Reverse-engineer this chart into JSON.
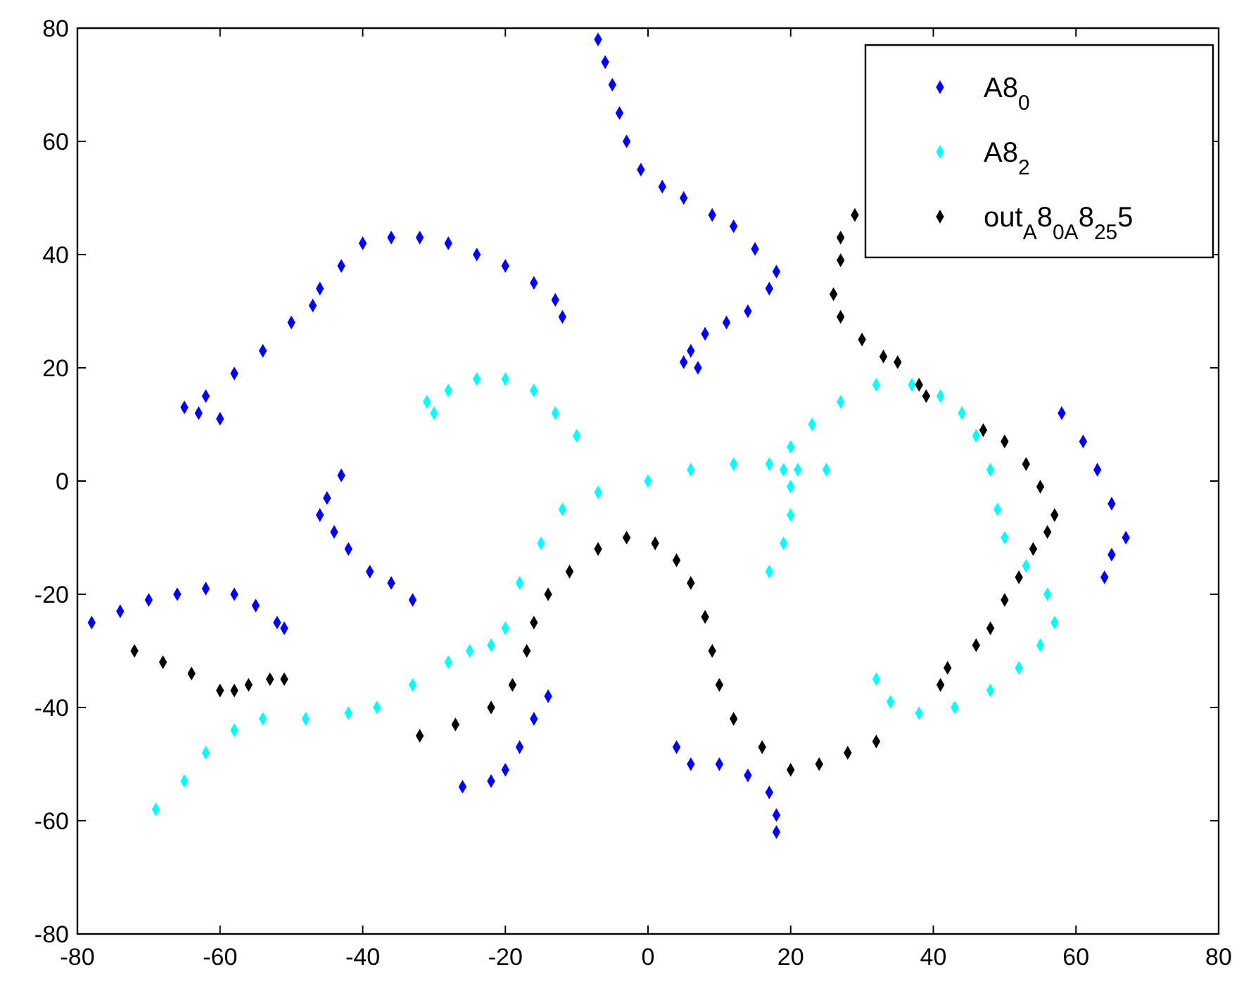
{
  "chart_data": {
    "type": "scatter",
    "marker": "diamond",
    "legend": "top right",
    "grid": false,
    "xlim": [
      -80,
      80
    ],
    "xticks": [
      -80,
      -60,
      -40,
      -20,
      0,
      20,
      40,
      60,
      80
    ],
    "ylim": [
      -80,
      80
    ],
    "yticks": [
      -80,
      -60,
      -40,
      -20,
      0,
      20,
      40,
      60,
      80
    ],
    "series": [
      {
        "name": "A8$_{0}$",
        "color": "#0000ff",
        "x": [
          -60,
          -63,
          -65,
          -62,
          -58,
          -54,
          -50,
          -47,
          -46,
          -43,
          -40,
          -36,
          -32,
          -28,
          -24,
          -20,
          -16,
          -13,
          -12,
          -7,
          -6,
          -5,
          -4,
          -3,
          -1,
          2,
          5,
          9,
          12,
          15,
          18,
          17,
          14,
          11,
          8,
          6,
          5,
          7,
          -43,
          -45,
          -46,
          -44,
          -42,
          -39,
          -36,
          -33,
          -78,
          -74,
          -70,
          -66,
          -62,
          -58,
          -55,
          -52,
          -51,
          -26,
          -22,
          -20,
          -18,
          -16,
          -14,
          4,
          6,
          10,
          14,
          17,
          18,
          18,
          58,
          61,
          63,
          65,
          67,
          65,
          64
        ],
        "values": [
          11,
          12,
          13,
          15,
          19,
          23,
          28,
          31,
          34,
          38,
          42,
          43,
          43,
          42,
          40,
          38,
          35,
          32,
          29,
          78,
          74,
          70,
          65,
          60,
          55,
          52,
          50,
          47,
          45,
          41,
          37,
          34,
          30,
          28,
          26,
          23,
          21,
          20,
          1,
          -3,
          -6,
          -9,
          -12,
          -16,
          -18,
          -21,
          -25,
          -23,
          -21,
          -20,
          -19,
          -20,
          -22,
          -25,
          -26,
          -54,
          -53,
          -51,
          -47,
          -42,
          -38,
          -47,
          -50,
          -50,
          -52,
          -55,
          -59,
          -62,
          12,
          7,
          2,
          -4,
          -10,
          -13,
          -17
        ]
      },
      {
        "name": "A8$_{2}$",
        "color": "#00ffff",
        "x": [
          -30,
          -31,
          -28,
          -24,
          -20,
          -16,
          -13,
          -10,
          -69,
          -65,
          -62,
          -58,
          -54,
          -48,
          -42,
          -38,
          -33,
          -28,
          -25,
          -22,
          -20,
          -18,
          -15,
          -12,
          -7,
          0,
          6,
          12,
          17,
          21,
          25,
          17,
          19,
          20,
          20,
          19,
          20,
          23,
          27,
          32,
          37,
          41,
          44,
          46,
          48,
          49,
          50,
          53,
          56,
          57,
          55,
          52,
          48,
          43,
          38,
          34,
          32
        ],
        "values": [
          12,
          14,
          16,
          18,
          18,
          16,
          12,
          8,
          -58,
          -53,
          -48,
          -44,
          -42,
          -42,
          -41,
          -40,
          -36,
          -32,
          -30,
          -29,
          -26,
          -18,
          -11,
          -5,
          -2,
          0,
          2,
          3,
          3,
          2,
          2,
          -16,
          -11,
          -6,
          -1,
          2,
          6,
          10,
          14,
          17,
          17,
          15,
          12,
          8,
          2,
          -5,
          -10,
          -15,
          -20,
          -25,
          -29,
          -33,
          -37,
          -40,
          -41,
          -39,
          -35
        ]
      },
      {
        "name": "out$_{A}$8$_{0A}$8$_{25}$5",
        "color": "#000000",
        "x": [
          -72,
          -68,
          -64,
          -60,
          -58,
          -56,
          -53,
          -51,
          -32,
          -27,
          -22,
          -19,
          -17,
          -16,
          -14,
          -11,
          -7,
          -3,
          1,
          4,
          6,
          8,
          9,
          10,
          12,
          16,
          20,
          24,
          28,
          32,
          29,
          27,
          27,
          26,
          27,
          30,
          33,
          35,
          38,
          39,
          47,
          50,
          53,
          55,
          57,
          56,
          54,
          52,
          50,
          48,
          46,
          42,
          41
        ],
        "values": [
          -30,
          -32,
          -34,
          -37,
          -37,
          -36,
          -35,
          -35,
          -45,
          -43,
          -40,
          -36,
          -30,
          -25,
          -20,
          -16,
          -12,
          -10,
          -11,
          -14,
          -18,
          -24,
          -30,
          -36,
          -42,
          -47,
          -51,
          -50,
          -48,
          -46,
          47,
          43,
          39,
          33,
          29,
          25,
          22,
          21,
          17,
          15,
          9,
          7,
          3,
          -1,
          -6,
          -9,
          -12,
          -17,
          -21,
          -26,
          -29,
          -33,
          -36
        ]
      }
    ]
  }
}
